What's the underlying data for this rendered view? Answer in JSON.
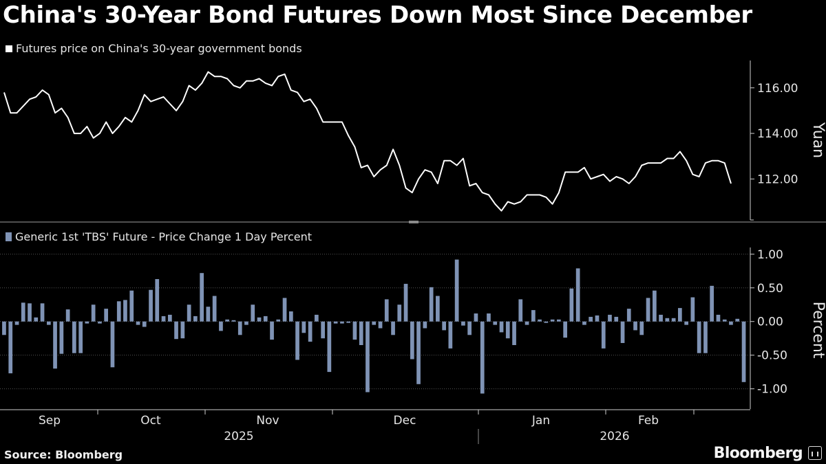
{
  "title": "China's 30-Year Bond Futures Down Most Since December",
  "legend_top": "Futures price on China's 30-year government bonds",
  "legend_bottom": "Generic 1st 'TBS' Future - Price Change 1 Day Percent",
  "source": "Source: Bloomberg",
  "brand": "Bloomberg",
  "colors": {
    "background": "#000000",
    "line": "#ffffff",
    "bars": "#7f93b5",
    "grid": "#555555"
  },
  "chart_data": [
    {
      "type": "line",
      "series": [
        {
          "name": "Futures price on China's 30-year government bonds",
          "values": [
            115.8,
            114.9,
            114.9,
            115.2,
            115.5,
            115.6,
            115.9,
            115.7,
            114.9,
            115.1,
            114.7,
            114.0,
            114.0,
            114.3,
            113.8,
            114.0,
            114.5,
            114.0,
            114.3,
            114.7,
            114.5,
            115.0,
            115.7,
            115.4,
            115.5,
            115.6,
            115.3,
            115.0,
            115.4,
            116.1,
            115.9,
            116.2,
            116.7,
            116.5,
            116.5,
            116.4,
            116.1,
            116.0,
            116.3,
            116.3,
            116.4,
            116.2,
            116.1,
            116.5,
            116.6,
            115.9,
            115.8,
            115.4,
            115.5,
            115.1,
            114.5,
            114.5,
            114.5,
            114.5,
            113.9,
            113.4,
            112.5,
            112.6,
            112.1,
            112.4,
            112.6,
            113.3,
            112.6,
            111.6,
            111.4,
            112.0,
            112.4,
            112.3,
            111.8,
            112.8,
            112.8,
            112.6,
            112.9,
            111.7,
            111.8,
            111.4,
            111.3,
            110.9,
            110.6,
            111.0,
            110.9,
            111.0,
            111.3,
            111.3,
            111.3,
            111.2,
            110.9,
            111.4,
            112.3,
            112.3,
            112.3,
            112.5,
            112.0,
            112.1,
            112.2,
            111.9,
            112.1,
            112.0,
            111.8,
            112.1,
            112.6,
            112.7,
            112.7,
            112.7,
            112.9,
            112.9,
            113.2,
            112.8,
            112.2,
            112.1,
            112.7,
            112.8,
            112.8,
            112.7,
            111.8
          ]
        }
      ],
      "ylabel": "Yuan",
      "y_ticks": [
        112.0,
        114.0,
        116.0
      ],
      "y_tick_labels": [
        "112.00",
        "114.00",
        "116.00"
      ],
      "ylim": [
        110.2,
        117.2
      ],
      "grid": false
    },
    {
      "type": "bar",
      "series": [
        {
          "name": "Generic 1st 'TBS' Future - Price Change 1 Day Percent",
          "values": [
            -0.2,
            -0.77,
            -0.05,
            0.28,
            0.27,
            0.06,
            0.27,
            -0.05,
            -0.7,
            -0.48,
            0.18,
            -0.47,
            -0.47,
            -0.03,
            0.25,
            -0.03,
            0.19,
            -0.68,
            0.3,
            0.32,
            0.46,
            -0.05,
            -0.08,
            0.47,
            0.63,
            0.08,
            0.1,
            -0.26,
            -0.25,
            0.25,
            0.08,
            0.72,
            0.22,
            0.38,
            -0.14,
            0.03,
            0.02,
            -0.2,
            -0.05,
            0.25,
            0.06,
            0.08,
            -0.27,
            0.03,
            0.35,
            0.15,
            -0.57,
            -0.17,
            -0.3,
            0.1,
            -0.25,
            -0.75,
            -0.03,
            -0.03,
            -0.02,
            -0.27,
            -0.35,
            -1.05,
            -0.05,
            -0.1,
            0.33,
            -0.2,
            0.25,
            0.56,
            -0.56,
            -0.93,
            -0.1,
            0.51,
            0.38,
            -0.13,
            -0.4,
            0.92,
            -0.06,
            -0.2,
            0.12,
            -1.07,
            0.12,
            -0.05,
            -0.16,
            -0.25,
            -0.35,
            0.33,
            -0.05,
            0.17,
            0.03,
            -0.02,
            0.03,
            0.03,
            -0.24,
            0.49,
            0.79,
            -0.05,
            0.07,
            0.09,
            -0.4,
            0.1,
            0.07,
            -0.32,
            0.19,
            -0.13,
            -0.2,
            0.35,
            0.46,
            0.1,
            0.05,
            0.05,
            0.2,
            -0.05,
            0.36,
            -0.47,
            -0.47,
            0.53,
            0.1,
            0.03,
            -0.05,
            0.04,
            -0.9
          ]
        }
      ],
      "ylabel": "Percent",
      "y_ticks": [
        -1.0,
        -0.5,
        0.0,
        0.5,
        1.0
      ],
      "y_tick_labels": [
        "-1.00",
        "-0.50",
        "0.00",
        "0.50",
        "1.00"
      ],
      "ylim": [
        -1.3,
        1.1
      ],
      "grid": true
    }
  ],
  "x_axis": {
    "months": [
      "Sep",
      "Oct",
      "Nov",
      "Dec",
      "Jan",
      "Feb"
    ],
    "years": [
      "2025",
      "2026"
    ]
  }
}
